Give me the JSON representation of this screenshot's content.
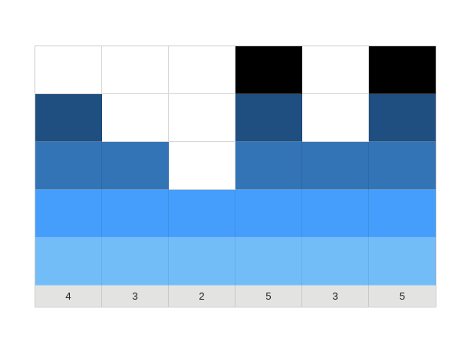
{
  "puzzle": {
    "columns": 6,
    "colors": {
      "empty": "#ffffff",
      "black": "#000000",
      "dark_blue": "#1f4e81",
      "medium_blue": "#3374b7",
      "bright_blue": "#459efb",
      "light_blue": "#72bdf8"
    },
    "grid": [
      [
        "empty",
        "empty",
        "empty",
        "black",
        "empty",
        "black"
      ],
      [
        "dark_blue",
        "empty",
        "empty",
        "dark_blue",
        "empty",
        "dark_blue"
      ],
      [
        "medium_blue",
        "medium_blue",
        "empty",
        "medium_blue",
        "medium_blue",
        "medium_blue"
      ],
      [
        "bright_blue",
        "bright_blue",
        "bright_blue",
        "bright_blue",
        "bright_blue",
        "bright_blue"
      ],
      [
        "light_blue",
        "light_blue",
        "light_blue",
        "light_blue",
        "light_blue",
        "light_blue"
      ]
    ],
    "column_counts": [
      "4",
      "3",
      "2",
      "5",
      "3",
      "5"
    ]
  }
}
